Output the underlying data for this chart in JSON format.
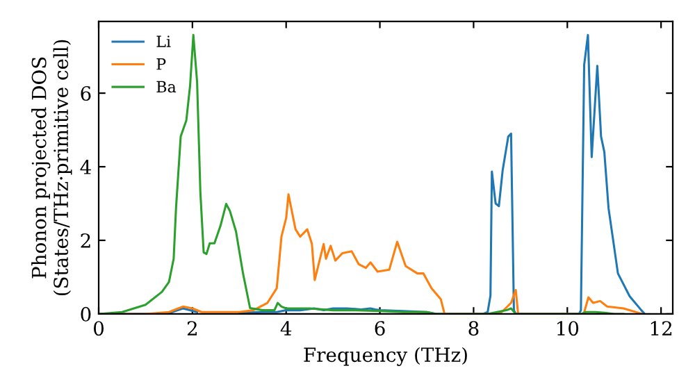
{
  "chart_data": {
    "type": "line",
    "xlabel": "Frequency (THz)",
    "ylabel": "Phonon projected DOS\n(States/THz·primitive cell)",
    "xlim": [
      0,
      12.25
    ],
    "ylim": [
      0,
      7.95
    ],
    "xticks": [
      0,
      2,
      4,
      6,
      8,
      10,
      12
    ],
    "yticks": [
      0,
      2,
      4,
      6
    ],
    "grid": false,
    "legend": "top left",
    "marker": "none",
    "line_style": "solid",
    "series": [
      {
        "name": "Li",
        "color": "#1f77b4",
        "x": [
          0,
          1.0,
          1.5,
          1.8,
          2.1,
          2.5,
          3.0,
          3.5,
          3.8,
          4.0,
          4.3,
          4.6,
          4.8,
          5.0,
          5.3,
          5.6,
          5.8,
          5.9,
          6.0,
          6.5,
          7.0,
          7.2,
          8.2,
          8.3,
          8.36,
          8.39,
          8.47,
          8.54,
          8.62,
          8.74,
          8.8,
          8.86,
          8.9,
          10.25,
          10.29,
          10.36,
          10.44,
          10.52,
          10.58,
          10.64,
          10.72,
          10.79,
          10.88,
          11.08,
          11.33,
          11.58,
          11.65
        ],
        "values": [
          0,
          0,
          0.02,
          0.15,
          0.05,
          null,
          0.03,
          0.05,
          0.05,
          0.1,
          0.1,
          0.15,
          0.1,
          0.15,
          0.15,
          0.12,
          0.15,
          0.12,
          0.1,
          0.08,
          0.05,
          0,
          0,
          0.05,
          0.5,
          3.87,
          3.0,
          2.93,
          3.9,
          4.82,
          4.9,
          0.1,
          0,
          0,
          0.1,
          6.77,
          7.58,
          4.26,
          5.5,
          6.74,
          4.82,
          4.4,
          2.87,
          1.1,
          0.48,
          0.1,
          0
        ]
      },
      {
        "name": "P",
        "color": "#ff7f0e",
        "x": [
          0,
          1.0,
          1.5,
          1.8,
          2.0,
          2.2,
          3.0,
          3.3,
          3.6,
          3.8,
          3.9,
          4.0,
          4.05,
          4.2,
          4.3,
          4.45,
          4.55,
          4.61,
          4.8,
          4.85,
          4.95,
          5.05,
          5.2,
          5.4,
          5.55,
          5.7,
          5.8,
          5.95,
          6.2,
          6.37,
          6.55,
          6.8,
          6.93,
          7.1,
          7.3,
          7.38,
          8.4,
          8.6,
          8.8,
          8.9,
          8.95,
          10.35,
          10.45,
          10.55,
          10.7,
          10.85,
          11.2,
          11.6
        ],
        "values": [
          0,
          0,
          0.05,
          0.2,
          0.15,
          0.05,
          0.05,
          0.1,
          0.3,
          0.7,
          2.1,
          2.6,
          3.25,
          2.3,
          2.1,
          2.3,
          1.9,
          0.92,
          1.9,
          1.5,
          1.85,
          1.45,
          1.65,
          1.7,
          1.35,
          1.25,
          1.4,
          1.15,
          1.2,
          1.96,
          1.3,
          1.1,
          1.1,
          0.7,
          0.4,
          0,
          0,
          0.05,
          0.3,
          0.65,
          0,
          0,
          0.45,
          0.3,
          0.35,
          0.2,
          0.15,
          0
        ]
      },
      {
        "name": "Ba",
        "color": "#2ca02c",
        "x": [
          0,
          0.5,
          1.0,
          1.35,
          1.5,
          1.6,
          1.65,
          1.75,
          1.87,
          1.95,
          2.02,
          2.1,
          2.17,
          2.24,
          2.3,
          2.37,
          2.47,
          2.6,
          2.72,
          2.8,
          2.93,
          3.08,
          3.23,
          3.5,
          3.75,
          3.82,
          3.9,
          4.0,
          4.5,
          5.0,
          5.5,
          6.0,
          6.5,
          7.0,
          7.2,
          8.3,
          8.5,
          8.7,
          8.8,
          8.9,
          10.3,
          10.4,
          10.6,
          10.8,
          11.0,
          11.2
        ],
        "values": [
          0,
          0.05,
          0.25,
          0.6,
          0.87,
          1.5,
          2.87,
          4.82,
          5.26,
          6.2,
          7.58,
          6.3,
          3.3,
          1.67,
          1.63,
          1.92,
          1.92,
          2.4,
          2.99,
          2.8,
          2.24,
          1.1,
          0.16,
          0.1,
          0.1,
          0.3,
          0.2,
          0.15,
          0.15,
          0.1,
          0.1,
          0.08,
          0.05,
          0.05,
          0,
          0,
          0.05,
          0.1,
          0.15,
          0,
          0,
          0.05,
          0.05,
          0.03,
          0,
          0
        ]
      }
    ]
  }
}
